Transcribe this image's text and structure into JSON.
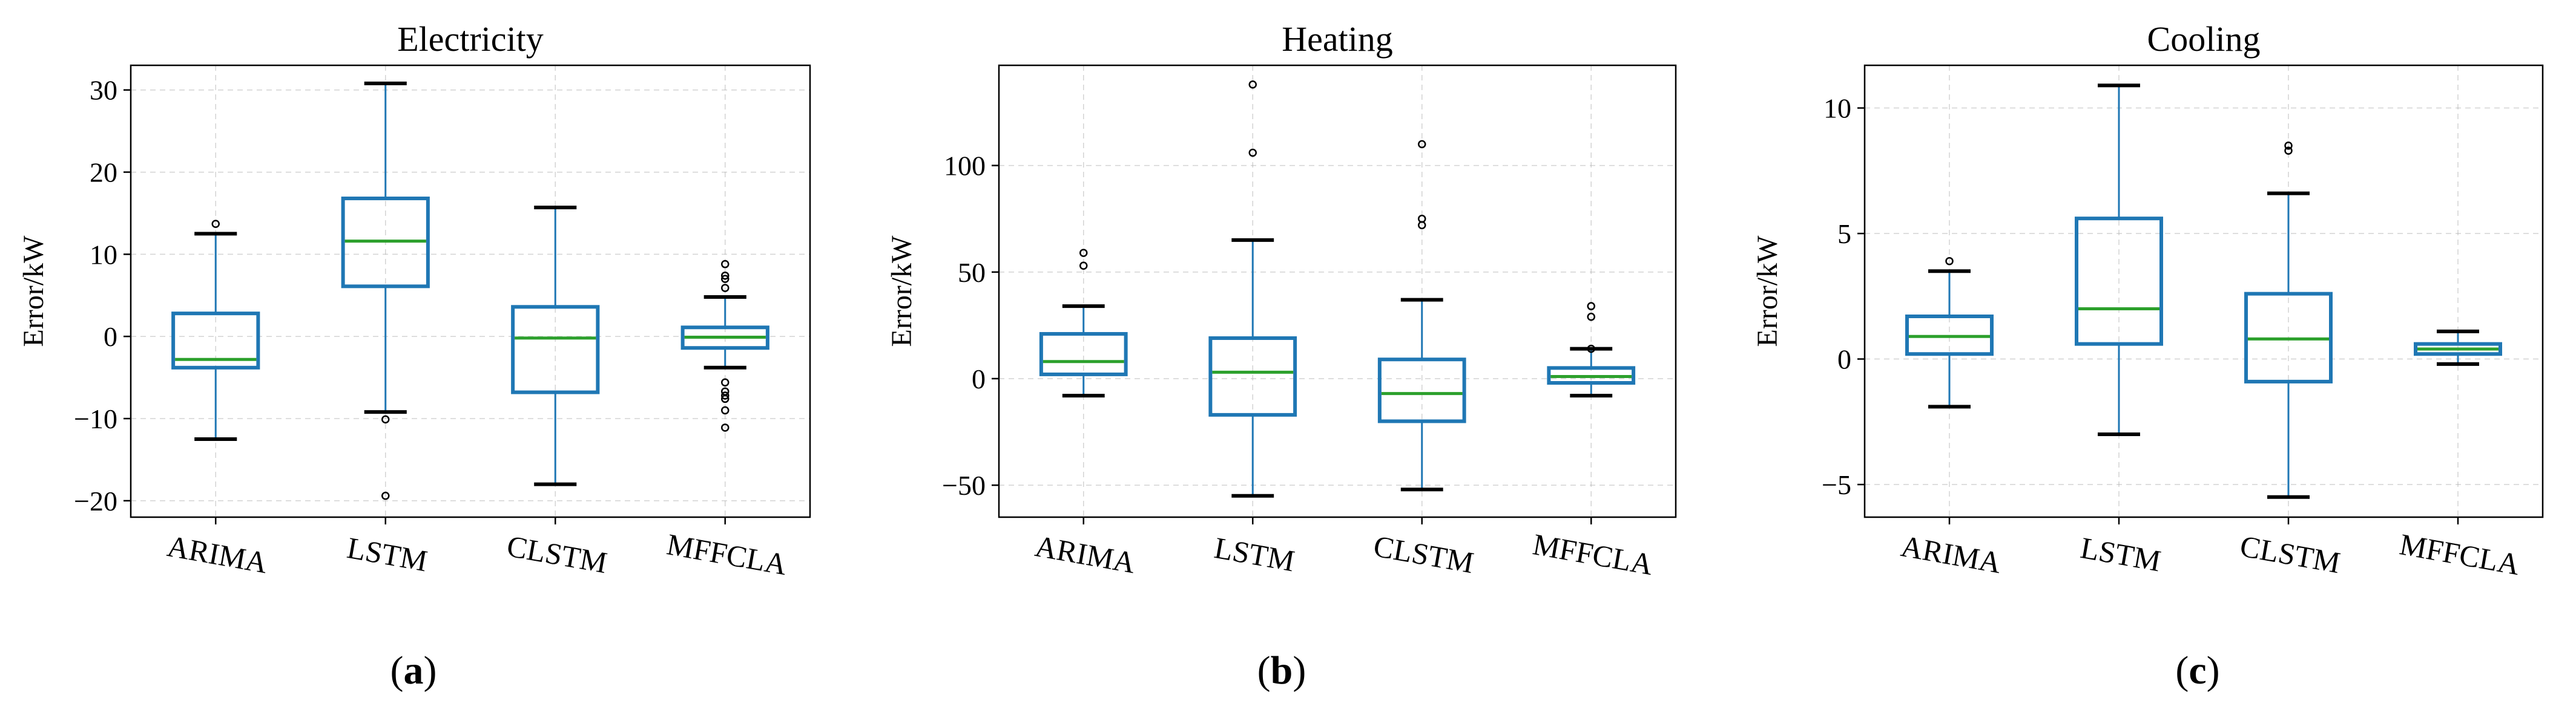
{
  "colors": {
    "box": "#1f77b4",
    "median": "#2ca02c",
    "cap": "#000000",
    "grid": "#b0b0b0"
  },
  "chart_data": [
    {
      "type": "box",
      "title": "Electricity",
      "sublabel": {
        "open": "(",
        "letter": "a",
        "close": ")"
      },
      "ylabel": "Error/kW",
      "ylim": [
        -22,
        33
      ],
      "yticks": [
        -20,
        -10,
        0,
        10,
        20,
        30
      ],
      "ytick_labels": [
        "−20",
        "−10",
        "0",
        "10",
        "20",
        "30"
      ],
      "grid": true,
      "categories": [
        "ARIMA",
        "LSTM",
        "CLSTM",
        "MFFCLA"
      ],
      "boxes": [
        {
          "whislo": -12.5,
          "q1": -3.8,
          "med": -2.8,
          "q3": 2.8,
          "whishi": 12.5,
          "fliers": [
            13.7
          ]
        },
        {
          "whislo": -9.2,
          "q1": 6.1,
          "med": 11.6,
          "q3": 16.8,
          "whishi": 30.8,
          "fliers": [
            -10.1,
            -19.4
          ]
        },
        {
          "whislo": -18.0,
          "q1": -6.8,
          "med": -0.2,
          "q3": 3.6,
          "whishi": 15.7,
          "fliers": []
        },
        {
          "whislo": -3.8,
          "q1": -1.4,
          "med": -0.1,
          "q3": 1.1,
          "whishi": 4.8,
          "fliers": [
            5.9,
            7.0,
            7.4,
            8.8,
            -5.6,
            -6.7,
            -7.2,
            -7.6,
            -9.0,
            -11.1
          ]
        }
      ]
    },
    {
      "type": "box",
      "title": "Heating",
      "sublabel": {
        "open": "(",
        "letter": "b",
        "close": ")"
      },
      "ylabel": "Error/kW",
      "ylim": [
        -65,
        147
      ],
      "yticks": [
        -50,
        0,
        50,
        100
      ],
      "ytick_labels": [
        "−50",
        "0",
        "50",
        "100"
      ],
      "grid": true,
      "categories": [
        "ARIMA",
        "LSTM",
        "CLSTM",
        "MFFCLA"
      ],
      "boxes": [
        {
          "whislo": -8,
          "q1": 2,
          "med": 8,
          "q3": 21,
          "whishi": 34,
          "fliers": [
            53,
            59
          ]
        },
        {
          "whislo": -55,
          "q1": -17,
          "med": 3,
          "q3": 19,
          "whishi": 65,
          "fliers": [
            106,
            138
          ]
        },
        {
          "whislo": -52,
          "q1": -20,
          "med": -7,
          "q3": 9,
          "whishi": 37,
          "fliers": [
            72,
            75,
            110
          ]
        },
        {
          "whislo": -8,
          "q1": -2,
          "med": 1,
          "q3": 5,
          "whishi": 14,
          "fliers": [
            14,
            29,
            34
          ]
        }
      ]
    },
    {
      "type": "box",
      "title": "Cooling",
      "sublabel": {
        "open": "(",
        "letter": "c",
        "close": ")"
      },
      "ylabel": "Error/kW",
      "ylim": [
        -6.3,
        11.7
      ],
      "yticks": [
        -5,
        0,
        5,
        10
      ],
      "ytick_labels": [
        "−5",
        "0",
        "5",
        "10"
      ],
      "grid": true,
      "categories": [
        "ARIMA",
        "LSTM",
        "CLSTM",
        "MFFCLA"
      ],
      "boxes": [
        {
          "whislo": -1.9,
          "q1": 0.2,
          "med": 0.9,
          "q3": 1.7,
          "whishi": 3.5,
          "fliers": [
            3.9
          ]
        },
        {
          "whislo": -3.0,
          "q1": 0.6,
          "med": 2.0,
          "q3": 5.6,
          "whishi": 10.9,
          "fliers": []
        },
        {
          "whislo": -5.5,
          "q1": -0.9,
          "med": 0.8,
          "q3": 2.6,
          "whishi": 6.6,
          "fliers": [
            8.3,
            8.5
          ]
        },
        {
          "whislo": -0.2,
          "q1": 0.2,
          "med": 0.4,
          "q3": 0.6,
          "whishi": 1.1,
          "fliers": []
        }
      ]
    }
  ]
}
